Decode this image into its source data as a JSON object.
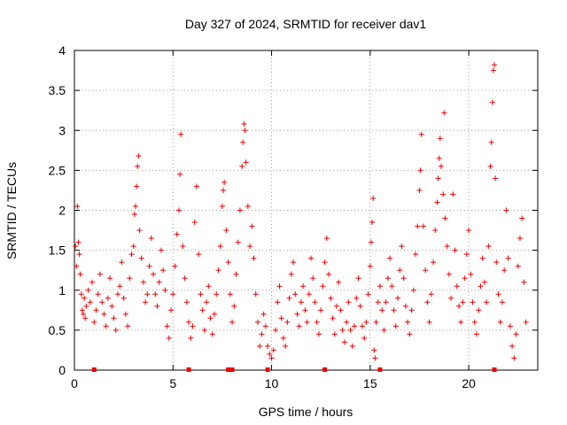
{
  "chart_data": {
    "type": "scatter",
    "title": "Day 327 of 2024, SRMTID for receiver dav1",
    "xlabel": "GPS time / hours",
    "ylabel": "SRMTID / TECUs",
    "xlim": [
      0,
      23.5
    ],
    "ylim": [
      0,
      4
    ],
    "xticks": [
      0,
      5,
      10,
      15,
      20
    ],
    "xtick_labels": [
      "0",
      "5",
      "10",
      "15",
      "20"
    ],
    "yticks": [
      0,
      0.5,
      1,
      1.5,
      2,
      2.5,
      3,
      3.5,
      4
    ],
    "ytick_labels": [
      "0",
      "0.5",
      "1",
      "1.5",
      "2",
      "2.5",
      "3",
      "3.5",
      "4"
    ],
    "grid": true,
    "marker": "plus",
    "series": [
      {
        "name": "SRMTID",
        "color": "#ee0000",
        "points": [
          [
            0.05,
            1.55
          ],
          [
            0.1,
            1.3
          ],
          [
            0.15,
            2.05
          ],
          [
            0.2,
            1.6
          ],
          [
            0.25,
            1.45
          ],
          [
            0.3,
            1.2
          ],
          [
            0.35,
            0.95
          ],
          [
            0.4,
            0.75
          ],
          [
            0.45,
            0.7
          ],
          [
            0.5,
            0.9
          ],
          [
            0.55,
            0.65
          ],
          [
            0.6,
            0.8
          ],
          [
            0.7,
            1.0
          ],
          [
            0.8,
            0.85
          ],
          [
            0.9,
            1.1
          ],
          [
            1.0,
            0.6
          ],
          [
            1.1,
            0.75
          ],
          [
            1.2,
            0.95
          ],
          [
            1.3,
            1.2
          ],
          [
            1.4,
            0.85
          ],
          [
            1.5,
            0.7
          ],
          [
            1.6,
            0.55
          ],
          [
            1.7,
            0.9
          ],
          [
            1.8,
            1.15
          ],
          [
            1.9,
            0.8
          ],
          [
            2.0,
            0.65
          ],
          [
            2.1,
            0.5
          ],
          [
            2.2,
            0.95
          ],
          [
            2.3,
            1.05
          ],
          [
            2.4,
            1.35
          ],
          [
            2.5,
            0.9
          ],
          [
            2.6,
            0.7
          ],
          [
            2.7,
            0.55
          ],
          [
            2.8,
            1.15
          ],
          [
            2.9,
            1.45
          ],
          [
            3.0,
            1.55
          ],
          [
            3.05,
            1.95
          ],
          [
            3.1,
            2.05
          ],
          [
            3.15,
            2.3
          ],
          [
            3.2,
            2.55
          ],
          [
            3.25,
            2.68
          ],
          [
            3.3,
            1.75
          ],
          [
            3.4,
            1.4
          ],
          [
            3.5,
            1.1
          ],
          [
            3.6,
            0.85
          ],
          [
            3.7,
            0.95
          ],
          [
            3.8,
            1.3
          ],
          [
            3.9,
            1.65
          ],
          [
            4.0,
            1.2
          ],
          [
            4.1,
            0.95
          ],
          [
            4.2,
            0.8
          ],
          [
            4.3,
            1.1
          ],
          [
            4.4,
            1.5
          ],
          [
            4.5,
            1.25
          ],
          [
            4.6,
            1.0
          ],
          [
            4.7,
            0.55
          ],
          [
            4.8,
            0.4
          ],
          [
            4.9,
            0.75
          ],
          [
            5.0,
            0.95
          ],
          [
            5.1,
            1.3
          ],
          [
            5.2,
            1.7
          ],
          [
            5.3,
            2.0
          ],
          [
            5.35,
            2.45
          ],
          [
            5.4,
            2.95
          ],
          [
            5.5,
            1.55
          ],
          [
            5.6,
            1.15
          ],
          [
            5.7,
            0.85
          ],
          [
            5.8,
            0.6
          ],
          [
            5.9,
            0.4
          ],
          [
            6.0,
            0.55
          ],
          [
            6.1,
            1.85
          ],
          [
            6.2,
            2.3
          ],
          [
            6.3,
            1.45
          ],
          [
            6.4,
            0.95
          ],
          [
            6.5,
            0.75
          ],
          [
            6.6,
            0.5
          ],
          [
            6.7,
            0.85
          ],
          [
            6.8,
            1.05
          ],
          [
            6.9,
            0.65
          ],
          [
            7.0,
            0.45
          ],
          [
            7.1,
            0.7
          ],
          [
            7.2,
            0.95
          ],
          [
            7.3,
            1.25
          ],
          [
            7.4,
            1.55
          ],
          [
            7.5,
            2.05
          ],
          [
            7.55,
            2.25
          ],
          [
            7.6,
            2.35
          ],
          [
            7.7,
            1.75
          ],
          [
            7.8,
            1.35
          ],
          [
            7.9,
            0.95
          ],
          [
            8.0,
            0.6
          ],
          [
            8.1,
            0.8
          ],
          [
            8.2,
            1.2
          ],
          [
            8.3,
            1.6
          ],
          [
            8.4,
            2.0
          ],
          [
            8.5,
            2.55
          ],
          [
            8.55,
            2.85
          ],
          [
            8.6,
            3.08
          ],
          [
            8.65,
            3.0
          ],
          [
            8.7,
            2.6
          ],
          [
            8.8,
            2.05
          ],
          [
            8.9,
            1.55
          ],
          [
            9.0,
            1.8
          ],
          [
            9.1,
            1.4
          ],
          [
            9.2,
            0.95
          ],
          [
            9.3,
            0.6
          ],
          [
            9.4,
            0.3
          ],
          [
            9.5,
            0.45
          ],
          [
            9.6,
            0.7
          ],
          [
            9.7,
            0.55
          ],
          [
            9.8,
            0.3
          ],
          [
            9.9,
            0.2
          ],
          [
            10.0,
            0.15
          ],
          [
            10.1,
            0.25
          ],
          [
            10.2,
            0.5
          ],
          [
            10.3,
            0.85
          ],
          [
            10.4,
            1.05
          ],
          [
            10.5,
            0.65
          ],
          [
            10.6,
            0.4
          ],
          [
            10.7,
            0.3
          ],
          [
            10.8,
            0.6
          ],
          [
            10.9,
            0.9
          ],
          [
            11.0,
            1.2
          ],
          [
            11.1,
            1.35
          ],
          [
            11.2,
            0.95
          ],
          [
            11.3,
            0.7
          ],
          [
            11.4,
            0.55
          ],
          [
            11.5,
            0.85
          ],
          [
            11.6,
            1.05
          ],
          [
            11.7,
            0.75
          ],
          [
            11.8,
            0.6
          ],
          [
            11.9,
            0.95
          ],
          [
            12.0,
            1.4
          ],
          [
            12.1,
            1.15
          ],
          [
            12.2,
            0.85
          ],
          [
            12.3,
            0.6
          ],
          [
            12.4,
            0.45
          ],
          [
            12.5,
            0.75
          ],
          [
            12.6,
            1.05
          ],
          [
            12.7,
            1.35
          ],
          [
            12.8,
            1.65
          ],
          [
            12.9,
            1.2
          ],
          [
            13.0,
            0.9
          ],
          [
            13.1,
            0.65
          ],
          [
            13.2,
            0.45
          ],
          [
            13.3,
            0.8
          ],
          [
            13.4,
            1.1
          ],
          [
            13.5,
            0.75
          ],
          [
            13.6,
            0.5
          ],
          [
            13.7,
            0.35
          ],
          [
            13.8,
            0.6
          ],
          [
            13.9,
            0.85
          ],
          [
            14.0,
            0.5
          ],
          [
            14.1,
            0.3
          ],
          [
            14.2,
            0.55
          ],
          [
            14.3,
            0.9
          ],
          [
            14.4,
            1.15
          ],
          [
            14.5,
            0.8
          ],
          [
            14.6,
            0.55
          ],
          [
            14.7,
            0.4
          ],
          [
            14.8,
            0.6
          ],
          [
            14.9,
            0.95
          ],
          [
            15.0,
            1.3
          ],
          [
            15.05,
            1.6
          ],
          [
            15.1,
            1.85
          ],
          [
            15.15,
            2.15
          ],
          [
            15.2,
            0.25
          ],
          [
            15.25,
            0.15
          ],
          [
            15.3,
            0.6
          ],
          [
            15.4,
            0.85
          ],
          [
            15.5,
            1.05
          ],
          [
            15.6,
            0.75
          ],
          [
            15.7,
            0.5
          ],
          [
            15.8,
            0.85
          ],
          [
            15.9,
            1.15
          ],
          [
            16.0,
            1.4
          ],
          [
            16.1,
            1.05
          ],
          [
            16.2,
            0.75
          ],
          [
            16.3,
            0.55
          ],
          [
            16.4,
            0.9
          ],
          [
            16.5,
            1.25
          ],
          [
            16.6,
            1.55
          ],
          [
            16.7,
            1.15
          ],
          [
            16.8,
            0.8
          ],
          [
            16.9,
            0.6
          ],
          [
            17.0,
            0.45
          ],
          [
            17.1,
            0.75
          ],
          [
            17.2,
            1.0
          ],
          [
            17.3,
            1.45
          ],
          [
            17.4,
            1.8
          ],
          [
            17.5,
            2.25
          ],
          [
            17.55,
            2.5
          ],
          [
            17.6,
            2.95
          ],
          [
            17.7,
            1.8
          ],
          [
            17.8,
            1.25
          ],
          [
            17.9,
            0.85
          ],
          [
            18.0,
            0.6
          ],
          [
            18.1,
            0.95
          ],
          [
            18.2,
            1.35
          ],
          [
            18.3,
            1.75
          ],
          [
            18.4,
            2.1
          ],
          [
            18.45,
            2.4
          ],
          [
            18.5,
            2.65
          ],
          [
            18.55,
            2.9
          ],
          [
            18.6,
            2.55
          ],
          [
            18.7,
            2.2
          ],
          [
            18.75,
            3.22
          ],
          [
            18.8,
            1.9
          ],
          [
            18.9,
            1.55
          ],
          [
            19.0,
            1.2
          ],
          [
            19.1,
            0.9
          ],
          [
            19.2,
            2.2
          ],
          [
            19.3,
            1.5
          ],
          [
            19.4,
            1.05
          ],
          [
            19.5,
            0.8
          ],
          [
            19.6,
            0.6
          ],
          [
            19.7,
            0.85
          ],
          [
            19.8,
            1.15
          ],
          [
            19.9,
            1.45
          ],
          [
            20.0,
            1.75
          ],
          [
            20.1,
            1.2
          ],
          [
            20.2,
            0.85
          ],
          [
            20.3,
            0.6
          ],
          [
            20.4,
            0.45
          ],
          [
            20.5,
            0.75
          ],
          [
            20.6,
            1.05
          ],
          [
            20.7,
            1.4
          ],
          [
            20.8,
            1.1
          ],
          [
            20.9,
            0.85
          ],
          [
            21.0,
            1.55
          ],
          [
            21.1,
            2.55
          ],
          [
            21.15,
            2.85
          ],
          [
            21.2,
            3.35
          ],
          [
            21.25,
            3.75
          ],
          [
            21.3,
            3.82
          ],
          [
            21.35,
            2.4
          ],
          [
            21.4,
            1.35
          ],
          [
            21.5,
            0.95
          ],
          [
            21.6,
            0.6
          ],
          [
            21.7,
            0.85
          ],
          [
            21.8,
            1.25
          ],
          [
            21.9,
            2.0
          ],
          [
            22.0,
            1.4
          ],
          [
            22.1,
            0.55
          ],
          [
            22.2,
            0.3
          ],
          [
            22.3,
            0.15
          ],
          [
            22.4,
            0.45
          ],
          [
            22.5,
            1.3
          ],
          [
            22.6,
            1.65
          ],
          [
            22.7,
            1.9
          ],
          [
            22.8,
            1.1
          ],
          [
            22.9,
            0.6
          ]
        ]
      }
    ],
    "zero_markers_x": [
      1.0,
      5.8,
      7.8,
      8.0,
      9.8,
      12.7,
      15.5,
      21.3
    ]
  }
}
